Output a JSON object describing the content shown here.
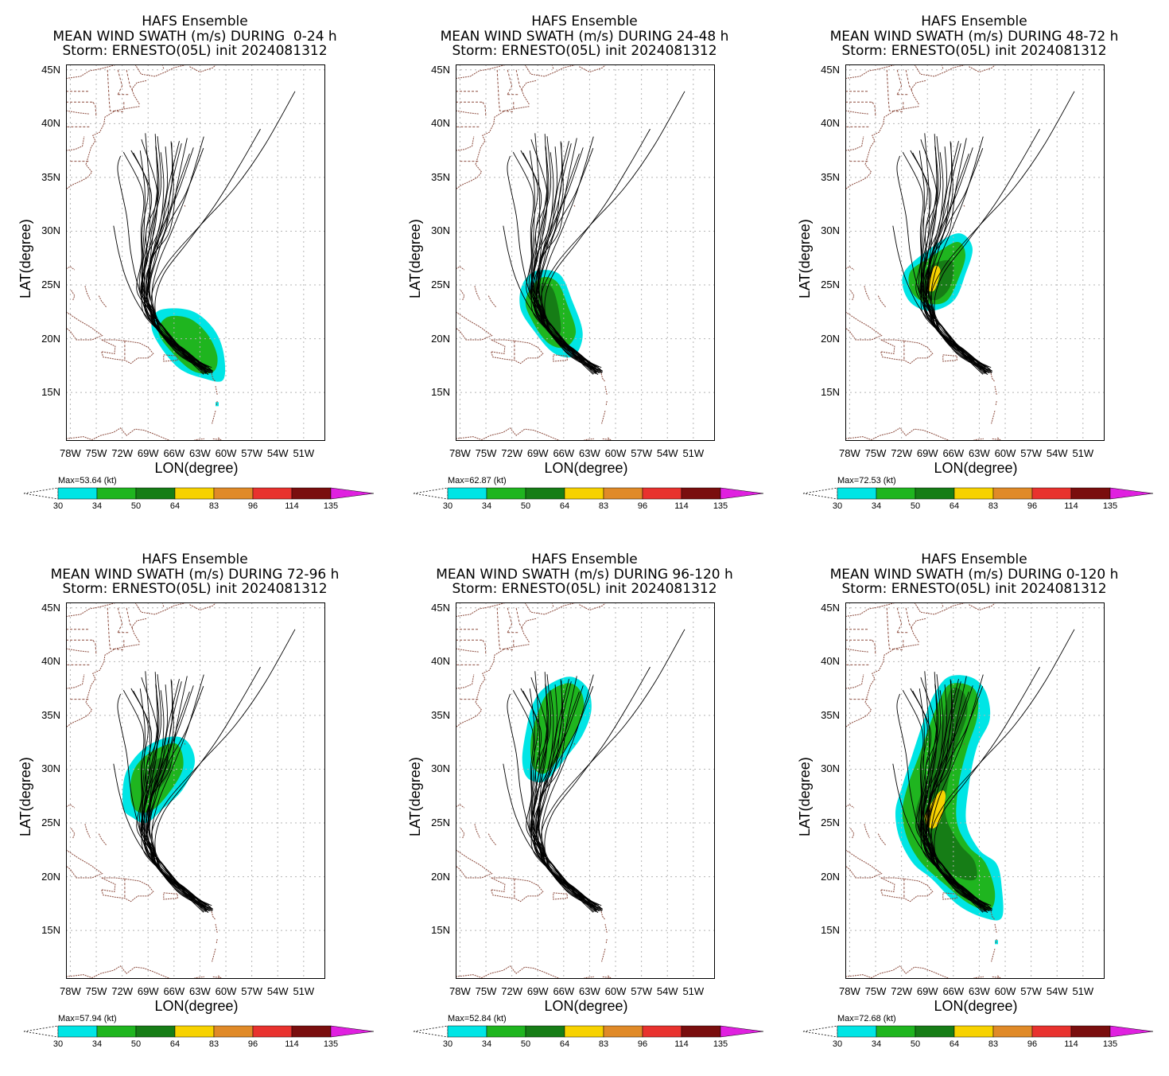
{
  "panels": [
    {
      "title1": "HAFS Ensemble",
      "title2": "MEAN WIND SWATH (m/s) DURING  0-24 h",
      "title3": "Storm: ERNESTO(05L) init 2024081312",
      "max": "Max=53.64 (kt)"
    },
    {
      "title1": "HAFS Ensemble",
      "title2": "MEAN WIND SWATH (m/s) DURING 24-48 h",
      "title3": "Storm: ERNESTO(05L) init 2024081312",
      "max": "Max=62.87 (kt)"
    },
    {
      "title1": "HAFS Ensemble",
      "title2": "MEAN WIND SWATH (m/s) DURING 48-72 h",
      "title3": "Storm: ERNESTO(05L) init 2024081312",
      "max": "Max=72.53 (kt)"
    },
    {
      "title1": "HAFS Ensemble",
      "title2": "MEAN WIND SWATH (m/s) DURING 72-96 h",
      "title3": "Storm: ERNESTO(05L) init 2024081312",
      "max": "Max=57.94 (kt)"
    },
    {
      "title1": "HAFS Ensemble",
      "title2": "MEAN WIND SWATH (m/s) DURING 96-120 h",
      "title3": "Storm: ERNESTO(05L) init 2024081312",
      "max": "Max=52.84 (kt)"
    },
    {
      "title1": "HAFS Ensemble",
      "title2": "MEAN WIND SWATH (m/s) DURING 0-120 h",
      "title3": "Storm: ERNESTO(05L) init 2024081312",
      "max": "Max=72.68 (kt)"
    }
  ],
  "axes": {
    "xlabel": "LON(degree)",
    "ylabel": "LAT(degree)",
    "xticks": [
      "78W",
      "75W",
      "72W",
      "69W",
      "66W",
      "63W",
      "60W",
      "57W",
      "54W",
      "51W"
    ],
    "yticks": [
      "45N",
      "40N",
      "35N",
      "30N",
      "25N",
      "20N",
      "15N"
    ]
  },
  "colorbar": {
    "labels": [
      "30",
      "34",
      "50",
      "64",
      "83",
      "96",
      "114",
      "135"
    ],
    "colors": [
      "#00e5e5",
      "#1fb51f",
      "#167d16",
      "#f7d200",
      "#e08a28",
      "#e8322e",
      "#7a0e0e",
      "#e020e0"
    ]
  },
  "map_data": {
    "lon_range": [
      -78.5,
      -48.5
    ],
    "lat_range": [
      10.5,
      45.5
    ],
    "swaths": [
      {
        "panel": 0,
        "cyan": [
          [
            -67.5,
            22.7
          ],
          [
            -64,
            22.6
          ],
          [
            -61.5,
            21
          ],
          [
            -60.3,
            18.8
          ],
          [
            -60.3,
            16.2
          ],
          [
            -62.5,
            16.3
          ],
          [
            -65.5,
            17.3
          ],
          [
            -68,
            19.8
          ],
          [
            -68.6,
            21.5
          ]
        ],
        "green": [
          [
            -66.8,
            22
          ],
          [
            -64.3,
            21.9
          ],
          [
            -62.2,
            20.5
          ],
          [
            -61,
            18.4
          ],
          [
            -61.5,
            16.9
          ],
          [
            -63.8,
            17
          ],
          [
            -66.2,
            18.7
          ],
          [
            -67.8,
            20.6
          ]
        ],
        "dark": [],
        "yellow": []
      },
      {
        "panel": 1,
        "cyan": [
          [
            -69.2,
            26.3
          ],
          [
            -66.5,
            26
          ],
          [
            -65,
            23.5
          ],
          [
            -63.8,
            20.5
          ],
          [
            -64.8,
            18.4
          ],
          [
            -67.2,
            18.7
          ],
          [
            -69.5,
            20.8
          ],
          [
            -71,
            22.8
          ],
          [
            -70.8,
            25
          ]
        ],
        "green": [
          [
            -68.8,
            25.6
          ],
          [
            -66.8,
            25.3
          ],
          [
            -65.5,
            23
          ],
          [
            -64.6,
            20.6
          ],
          [
            -65.8,
            19.2
          ],
          [
            -67.8,
            19.6
          ],
          [
            -69.6,
            21.6
          ],
          [
            -70.4,
            23.6
          ]
        ],
        "dark": [
          [
            -68.8,
            25
          ],
          [
            -67.4,
            24.8
          ],
          [
            -66.6,
            22.8
          ],
          [
            -66.4,
            20.5
          ],
          [
            -67.8,
            20.6
          ],
          [
            -69.3,
            22.5
          ]
        ],
        "yellow": []
      },
      {
        "panel": 2,
        "cyan": [
          [
            -69,
            28.2
          ],
          [
            -65.5,
            29.8
          ],
          [
            -63.8,
            28.5
          ],
          [
            -64.6,
            26
          ],
          [
            -66,
            23.5
          ],
          [
            -68.8,
            22.6
          ],
          [
            -71.2,
            23.6
          ],
          [
            -71.8,
            26
          ]
        ],
        "green": [
          [
            -68.6,
            27.6
          ],
          [
            -65.6,
            29
          ],
          [
            -64.6,
            27.8
          ],
          [
            -65.4,
            25.6
          ],
          [
            -66.8,
            23.5
          ],
          [
            -69,
            23.3
          ],
          [
            -70.8,
            24.3
          ],
          [
            -71,
            26.2
          ]
        ],
        "dark": [
          [
            -67.5,
            27.2
          ],
          [
            -66,
            27
          ],
          [
            -66.4,
            24.8
          ],
          [
            -68,
            23.6
          ],
          [
            -69.6,
            24.3
          ],
          [
            -69.4,
            26.2
          ]
        ],
        "yellow": [
          [
            -68.2,
            26.7
          ],
          [
            -67.5,
            26.3
          ],
          [
            -68.2,
            24.5
          ],
          [
            -69.1,
            24.8
          ]
        ]
      },
      {
        "panel": 3,
        "cyan": [
          [
            -69.5,
            31.9
          ],
          [
            -66.5,
            33
          ],
          [
            -64.5,
            32.6
          ],
          [
            -63.6,
            30.6
          ],
          [
            -65,
            28.1
          ],
          [
            -67.3,
            26.3
          ],
          [
            -69.2,
            25
          ],
          [
            -70.8,
            25.5
          ],
          [
            -71.9,
            26.5
          ],
          [
            -71.6,
            29.6
          ]
        ],
        "green": [
          [
            -69.2,
            31.3
          ],
          [
            -66.3,
            32.4
          ],
          [
            -65.2,
            31.8
          ],
          [
            -65,
            30
          ],
          [
            -66.4,
            28
          ],
          [
            -68.3,
            26.3
          ],
          [
            -70.1,
            26
          ],
          [
            -71,
            27.2
          ],
          [
            -70.8,
            29.6
          ]
        ],
        "dark": [
          [
            -67.8,
            31
          ],
          [
            -66.3,
            30.5
          ],
          [
            -67.3,
            28.6
          ],
          [
            -69,
            27.6
          ],
          [
            -69.4,
            29.5
          ]
        ],
        "yellow": []
      },
      {
        "panel": 4,
        "cyan": [
          [
            -68,
            37.7
          ],
          [
            -65.3,
            38.6
          ],
          [
            -63.3,
            37.6
          ],
          [
            -62.8,
            35.5
          ],
          [
            -63.8,
            33.2
          ],
          [
            -65.6,
            31.2
          ],
          [
            -67.2,
            29.6
          ],
          [
            -68.5,
            28.8
          ],
          [
            -70.2,
            29.2
          ],
          [
            -70.8,
            30.9
          ],
          [
            -70.3,
            33.8
          ],
          [
            -69.5,
            36.2
          ]
        ],
        "green": [
          [
            -67.8,
            37.1
          ],
          [
            -65.5,
            38
          ],
          [
            -64,
            37.2
          ],
          [
            -63.7,
            35.4
          ],
          [
            -64.8,
            33.2
          ],
          [
            -66.5,
            31.1
          ],
          [
            -68.2,
            29.6
          ],
          [
            -69.6,
            30.3
          ],
          [
            -69.8,
            32.7
          ],
          [
            -69,
            35.2
          ]
        ],
        "dark": [],
        "yellow": []
      },
      {
        "panel": 5,
        "cyan": [
          [
            -66.5,
            38.6
          ],
          [
            -63.8,
            38.5
          ],
          [
            -62.2,
            37.1
          ],
          [
            -61.8,
            34.6
          ],
          [
            -63.3,
            32
          ],
          [
            -64.2,
            28.5
          ],
          [
            -64.5,
            25
          ],
          [
            -63,
            22.5
          ],
          [
            -61,
            21.2
          ],
          [
            -60.4,
            19
          ],
          [
            -60.4,
            16.2
          ],
          [
            -62.5,
            16.2
          ],
          [
            -65.5,
            17.4
          ],
          [
            -68.5,
            19.8
          ],
          [
            -70.6,
            21.2
          ],
          [
            -72.2,
            23.5
          ],
          [
            -72.7,
            26
          ],
          [
            -72,
            28.2
          ],
          [
            -70.8,
            31.2
          ],
          [
            -69.4,
            34.6
          ],
          [
            -68.2,
            37
          ]
        ],
        "green": [
          [
            -66.4,
            37.9
          ],
          [
            -64.2,
            37.8
          ],
          [
            -63.2,
            36.8
          ],
          [
            -63.3,
            34.6
          ],
          [
            -64.4,
            31.9
          ],
          [
            -65.4,
            28.5
          ],
          [
            -65.6,
            25.1
          ],
          [
            -64.2,
            22.8
          ],
          [
            -62.3,
            21.3
          ],
          [
            -61.2,
            18.6
          ],
          [
            -61.8,
            16.9
          ],
          [
            -64.2,
            17.5
          ],
          [
            -67,
            19.3
          ],
          [
            -69.7,
            21.3
          ],
          [
            -71.3,
            23.5
          ],
          [
            -71.9,
            26
          ],
          [
            -71.3,
            28.4
          ],
          [
            -70,
            31.2
          ],
          [
            -68.6,
            34.4
          ],
          [
            -67.5,
            36.6
          ]
        ],
        "dark": [
          [
            -66.3,
            37.4
          ],
          [
            -64.8,
            37.1
          ],
          [
            -64.4,
            35.2
          ],
          [
            -65.5,
            32.4
          ],
          [
            -66.5,
            29.3
          ],
          [
            -66.9,
            25.8
          ],
          [
            -65.3,
            23.1
          ],
          [
            -63.6,
            21.5
          ],
          [
            -63.4,
            19.8
          ],
          [
            -65.3,
            19.9
          ],
          [
            -67.6,
            21.2
          ],
          [
            -69.6,
            23.1
          ],
          [
            -70.4,
            25.6
          ],
          [
            -69.5,
            28.3
          ],
          [
            -68.3,
            31.3
          ],
          [
            -67.3,
            34.5
          ]
        ],
        "yellow": [
          [
            -67.6,
            27.9
          ],
          [
            -66.9,
            27.5
          ],
          [
            -67.6,
            25.1
          ],
          [
            -68.6,
            24.5
          ],
          [
            -69.3,
            25.6
          ]
        ]
      }
    ]
  }
}
